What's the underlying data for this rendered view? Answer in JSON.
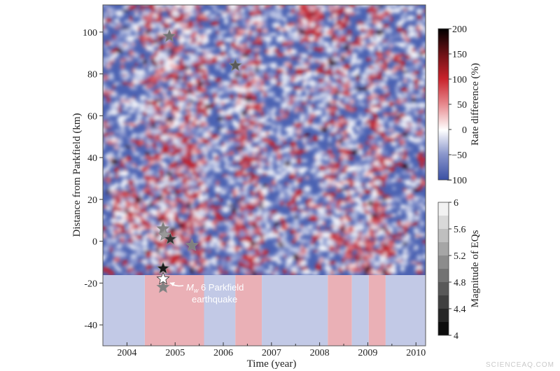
{
  "chart_data": {
    "type": "heatmap",
    "xlabel": "Time (year)",
    "ylabel": "Distance from Parkfield (km)",
    "xlim": [
      2003.5,
      2010.2
    ],
    "ylim": [
      -50,
      113
    ],
    "x_ticks": [
      "2004",
      "2005",
      "2006",
      "2007",
      "2008",
      "2009",
      "2010"
    ],
    "y_ticks": [
      "-40",
      "-20",
      "0",
      "20",
      "40",
      "60",
      "80",
      "100"
    ],
    "heatmap_y_range": [
      -16,
      113
    ],
    "colorbar": {
      "label": "Rate difference (%)",
      "min": -100,
      "max": 200,
      "ticks": [
        "−100",
        "−50",
        "0",
        "50",
        "100",
        "150",
        "200"
      ],
      "colors": {
        "low": "#3f56a8",
        "mid": "#ffffff",
        "high": "#c8222b",
        "peak": "#000000"
      }
    },
    "magnitude_bar": {
      "label": "Magnitude of EQs",
      "min": 4,
      "max": 6,
      "ticks": [
        "4",
        "4.4",
        "4.8",
        "5.2",
        "5.6",
        "6"
      ]
    },
    "period_strip": {
      "y_range": [
        -50,
        -16
      ],
      "segments": [
        {
          "start": 2003.5,
          "end": 2004.37,
          "state": "low"
        },
        {
          "start": 2004.37,
          "end": 2005.6,
          "state": "high"
        },
        {
          "start": 2005.6,
          "end": 2006.25,
          "state": "low"
        },
        {
          "start": 2006.25,
          "end": 2006.8,
          "state": "high"
        },
        {
          "start": 2006.8,
          "end": 2008.17,
          "state": "low"
        },
        {
          "start": 2008.17,
          "end": 2008.67,
          "state": "high"
        },
        {
          "start": 2008.67,
          "end": 2009.02,
          "state": "low"
        },
        {
          "start": 2009.02,
          "end": 2009.37,
          "state": "high"
        },
        {
          "start": 2009.37,
          "end": 2010.2,
          "state": "low"
        }
      ],
      "colors": {
        "low": "#c2c9e6",
        "high": "#eab0b6"
      }
    },
    "earthquakes": [
      {
        "x": 2004.88,
        "y": 98,
        "mag": 4.9
      },
      {
        "x": 2006.25,
        "y": 84,
        "mag": 4.7
      },
      {
        "x": 2004.75,
        "y": 6,
        "mag": 5.0
      },
      {
        "x": 2004.78,
        "y": 3,
        "mag": 5.2
      },
      {
        "x": 2004.9,
        "y": 1,
        "mag": 4.4
      },
      {
        "x": 2005.35,
        "y": -2,
        "mag": 5.0
      },
      {
        "x": 2004.75,
        "y": -13,
        "mag": 4.2
      },
      {
        "x": 2004.75,
        "y": -22,
        "mag": 5.0
      },
      {
        "x": 2004.75,
        "y": -18,
        "mag": 6.0
      }
    ],
    "annotation": {
      "m": "M",
      "sub": "w",
      "rest": " 6 Parkfield",
      "line2": "earthquake"
    }
  },
  "watermark": "SCIENCEAQ.COM"
}
